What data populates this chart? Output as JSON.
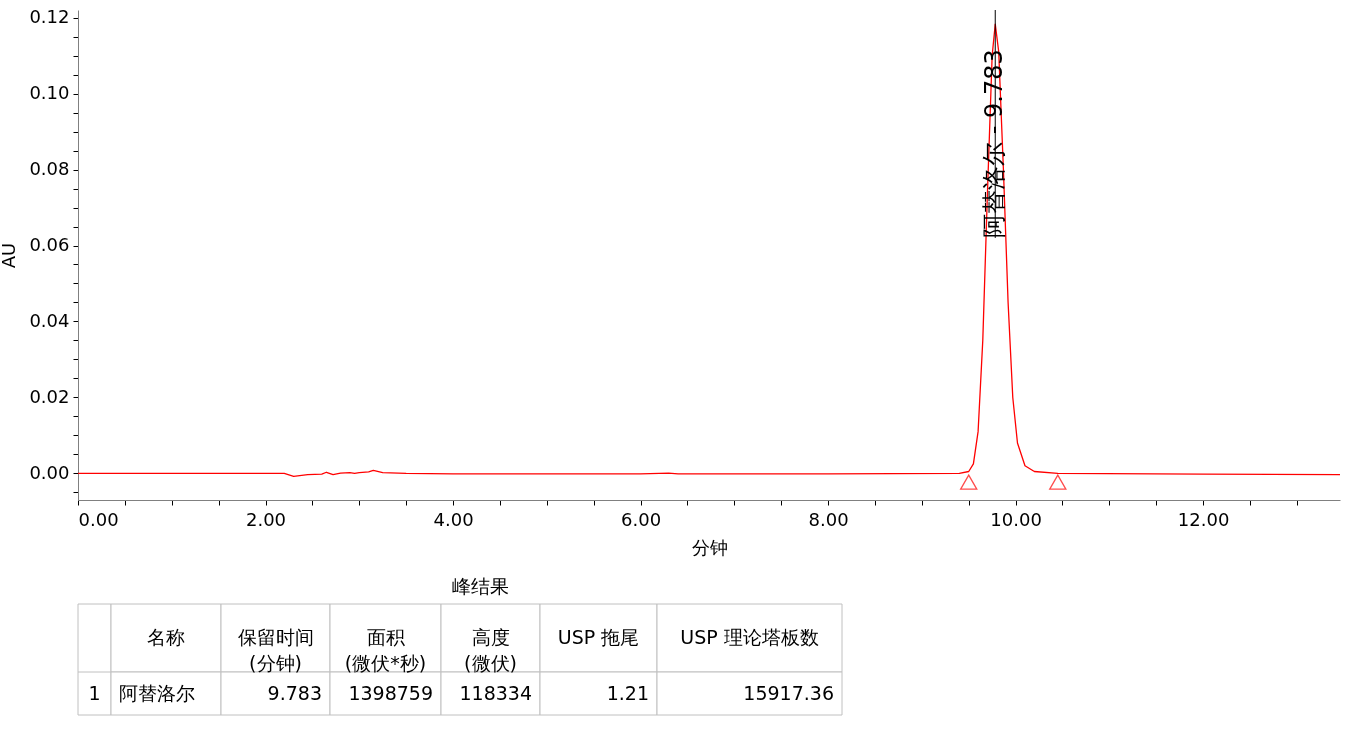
{
  "chart_data": {
    "type": "line",
    "xlabel": "分钟",
    "ylabel": "AU",
    "xlim": [
      0,
      13.46
    ],
    "ylim": [
      -0.007,
      0.122
    ],
    "xticks": [
      {
        "value": 0,
        "label": "0.00"
      },
      {
        "value": 0.5,
        "label": null
      },
      {
        "value": 1,
        "label": null
      },
      {
        "value": 1.5,
        "label": null
      },
      {
        "value": 2,
        "label": "2.00"
      },
      {
        "value": 2.5,
        "label": null
      },
      {
        "value": 3,
        "label": null
      },
      {
        "value": 3.5,
        "label": null
      },
      {
        "value": 4,
        "label": "4.00"
      },
      {
        "value": 4.5,
        "label": null
      },
      {
        "value": 5,
        "label": null
      },
      {
        "value": 5.5,
        "label": null
      },
      {
        "value": 6,
        "label": "6.00"
      },
      {
        "value": 6.5,
        "label": null
      },
      {
        "value": 7,
        "label": null
      },
      {
        "value": 7.5,
        "label": null
      },
      {
        "value": 8,
        "label": "8.00"
      },
      {
        "value": 8.5,
        "label": null
      },
      {
        "value": 9,
        "label": null
      },
      {
        "value": 9.5,
        "label": null
      },
      {
        "value": 10,
        "label": "10.00"
      },
      {
        "value": 10.5,
        "label": null
      },
      {
        "value": 11,
        "label": null
      },
      {
        "value": 11.5,
        "label": null
      },
      {
        "value": 12,
        "label": "12.00"
      },
      {
        "value": 12.5,
        "label": null
      },
      {
        "value": 13,
        "label": null
      }
    ],
    "yticks": [
      {
        "value": -0.005,
        "label": null
      },
      {
        "value": 0,
        "label": "0.00"
      },
      {
        "value": 0.005,
        "label": null
      },
      {
        "value": 0.01,
        "label": null
      },
      {
        "value": 0.015,
        "label": null
      },
      {
        "value": 0.02,
        "label": "0.02"
      },
      {
        "value": 0.025,
        "label": null
      },
      {
        "value": 0.03,
        "label": null
      },
      {
        "value": 0.035,
        "label": null
      },
      {
        "value": 0.04,
        "label": "0.04"
      },
      {
        "value": 0.045,
        "label": null
      },
      {
        "value": 0.05,
        "label": null
      },
      {
        "value": 0.055,
        "label": null
      },
      {
        "value": 0.06,
        "label": "0.06"
      },
      {
        "value": 0.065,
        "label": null
      },
      {
        "value": 0.07,
        "label": null
      },
      {
        "value": 0.075,
        "label": null
      },
      {
        "value": 0.08,
        "label": "0.08"
      },
      {
        "value": 0.085,
        "label": null
      },
      {
        "value": 0.09,
        "label": null
      },
      {
        "value": 0.095,
        "label": null
      },
      {
        "value": 0.1,
        "label": "0.10"
      },
      {
        "value": 0.105,
        "label": null
      },
      {
        "value": 0.11,
        "label": null
      },
      {
        "value": 0.115,
        "label": null
      },
      {
        "value": 0.12,
        "label": "0.12"
      }
    ],
    "grid": false,
    "series": [
      {
        "color": "#ff0000",
        "line_style": "solid",
        "x": [
          0,
          1,
          2,
          2.2,
          2.3,
          2.45,
          2.6,
          2.65,
          2.72,
          2.8,
          2.9,
          2.95,
          3.0,
          3.1,
          3.15,
          3.25,
          3.5,
          4,
          6,
          6.3,
          6.4,
          8,
          9.4,
          9.5,
          9.55,
          9.6,
          9.65,
          9.7,
          9.75,
          9.783,
          9.82,
          9.87,
          9.92,
          9.97,
          10.02,
          10.1,
          10.2,
          10.45,
          12,
          13.46
        ],
        "values": [
          0,
          0,
          0,
          0,
          -0.0008,
          -0.0003,
          -0.0002,
          0.0003,
          -0.0003,
          0.0001,
          0.0002,
          0,
          0.0002,
          0.0004,
          0.0008,
          0.0002,
          0,
          -0.0001,
          -0.0001,
          0.0001,
          -0.0001,
          -0.0001,
          0,
          0.0005,
          0.0025,
          0.011,
          0.035,
          0.074,
          0.11,
          0.1183,
          0.111,
          0.08,
          0.045,
          0.02,
          0.008,
          0.002,
          0.0005,
          0,
          -0.0002,
          -0.0003
        ]
      },
      {
        "type": "scatter",
        "color": "#ff0000",
        "marker": "triangle",
        "x": [
          9.5,
          10.45
        ],
        "values": [
          -0.0023,
          -0.0023
        ]
      }
    ],
    "ref_lines": [
      {
        "axis": "x",
        "value": 9.783,
        "color": "#000000"
      }
    ],
    "annotations": [
      {
        "text": "阿替洛尔 - 9.783",
        "x": 9.783,
        "y": 0.062
      },
      "峰结果",
      "名称",
      "保留时间\n(分钟)",
      "面积\n(微伏*秒)",
      "高度\n(微伏)",
      "USP 拖尾",
      "USP 理论塔板数",
      "1",
      "阿替洛尔",
      "9.783",
      "1398759",
      "118334",
      "1.21",
      "15917.36"
    ]
  }
}
